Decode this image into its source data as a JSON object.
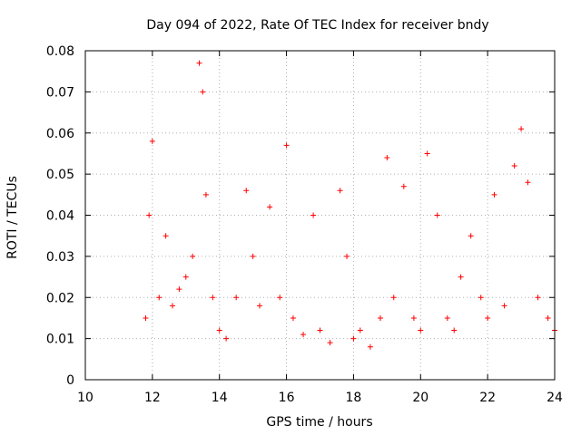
{
  "chart_data": {
    "type": "scatter",
    "title": "Day 094 of 2022, Rate Of TEC Index for receiver bndy",
    "xlabel": "GPS time / hours",
    "ylabel": "ROTI / TECUs",
    "xlim": [
      10,
      24
    ],
    "ylim": [
      0,
      0.08
    ],
    "grid": true,
    "marker": "+",
    "color": "#ff0000",
    "x_ticks": [
      "10",
      "12",
      "14",
      "16",
      "18",
      "20",
      "22",
      "24"
    ],
    "y_ticks": [
      "0",
      "0.01",
      "0.02",
      "0.03",
      "0.04",
      "0.05",
      "0.06",
      "0.07",
      "0.08"
    ],
    "series": [
      {
        "name": "ROTI",
        "x": [
          11.8,
          11.9,
          12.0,
          12.2,
          12.4,
          12.6,
          12.8,
          13.0,
          13.2,
          13.4,
          13.5,
          13.6,
          13.8,
          14.0,
          14.2,
          14.5,
          14.8,
          15.0,
          15.2,
          15.5,
          15.8,
          16.0,
          16.2,
          16.5,
          16.8,
          17.0,
          17.3,
          17.6,
          17.8,
          18.0,
          18.2,
          18.5,
          18.8,
          19.0,
          19.2,
          19.5,
          19.8,
          20.0,
          20.2,
          20.5,
          20.8,
          21.0,
          21.2,
          21.5,
          21.8,
          22.0,
          22.2,
          22.5,
          22.8,
          23.0,
          23.2,
          23.5,
          23.8,
          24.0
        ],
        "y": [
          0.015,
          0.04,
          0.058,
          0.02,
          0.035,
          0.018,
          0.022,
          0.025,
          0.03,
          0.077,
          0.07,
          0.045,
          0.02,
          0.012,
          0.01,
          0.02,
          0.046,
          0.03,
          0.018,
          0.042,
          0.02,
          0.057,
          0.015,
          0.011,
          0.04,
          0.012,
          0.009,
          0.046,
          0.03,
          0.01,
          0.012,
          0.008,
          0.015,
          0.054,
          0.02,
          0.047,
          0.015,
          0.012,
          0.055,
          0.04,
          0.015,
          0.012,
          0.025,
          0.035,
          0.02,
          0.015,
          0.045,
          0.018,
          0.052,
          0.061,
          0.048,
          0.02,
          0.015,
          0.012
        ]
      }
    ]
  }
}
